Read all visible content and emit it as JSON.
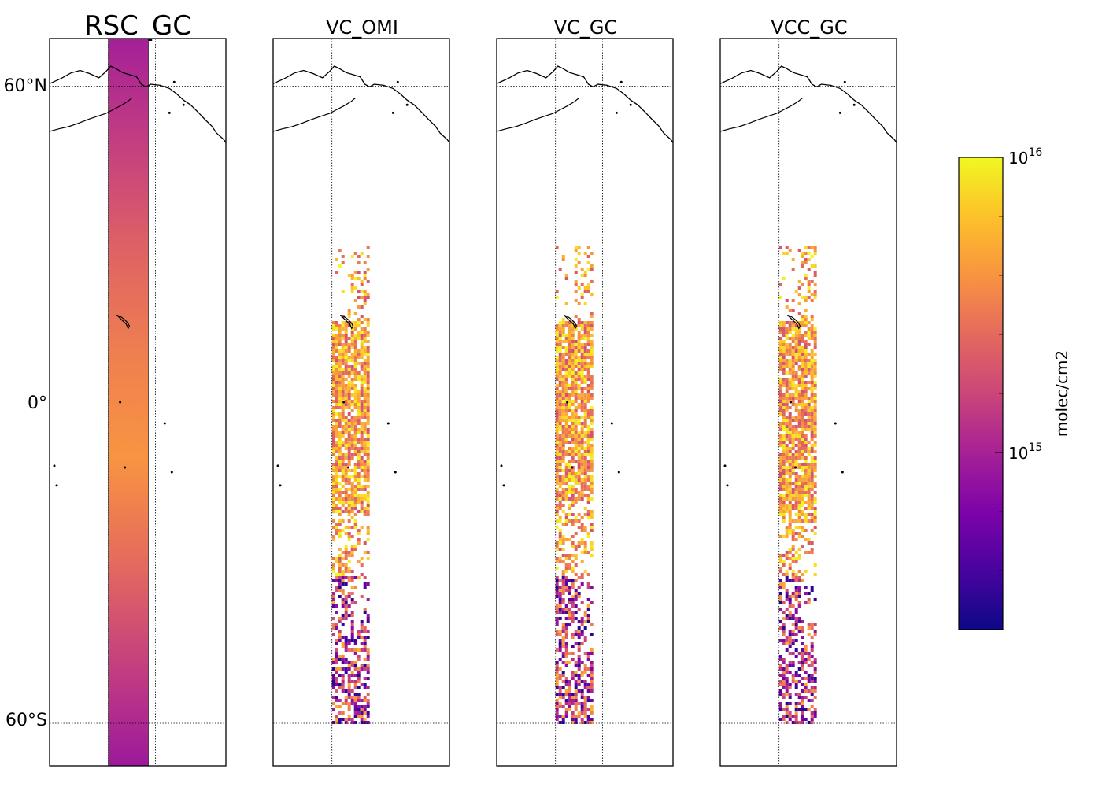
{
  "chart_data": {
    "type": "heatmap",
    "colormap": "plasma",
    "panels": [
      {
        "title": "RSC_GC",
        "kind": "rsc"
      },
      {
        "title": "VC_OMI",
        "kind": "swath",
        "seed": 11,
        "dense_lat": [
          -20,
          16
        ]
      },
      {
        "title": "VC_GC",
        "kind": "swath",
        "seed": 23,
        "dense_lat": [
          -18,
          16
        ]
      },
      {
        "title": "VCC_GC",
        "kind": "swath",
        "seed": 37,
        "dense_lat": [
          -22,
          16
        ]
      }
    ],
    "lat_ticks": [
      {
        "lat": 60,
        "label": "60°N"
      },
      {
        "lat": 0,
        "label": "0°"
      },
      {
        "lat": -60,
        "label": "60°S"
      }
    ],
    "ylim": [
      -68,
      69
    ],
    "swath_lon_range": [
      -180,
      -163
    ],
    "rsc_profile": [
      {
        "lat": 68,
        "log10": 15.0
      },
      {
        "lat": 50,
        "log10": 15.15
      },
      {
        "lat": 30,
        "log10": 15.35
      },
      {
        "lat": 10,
        "log10": 15.5
      },
      {
        "lat": -10,
        "log10": 15.6
      },
      {
        "lat": -30,
        "log10": 15.4
      },
      {
        "lat": -50,
        "log10": 15.15
      },
      {
        "lat": -68,
        "log10": 14.95
      }
    ],
    "colorbar": {
      "label": "molec/cm2",
      "log_range": [
        14.4,
        16.0
      ],
      "ticks": [
        {
          "log10": 16,
          "base": "10",
          "exp": "16"
        },
        {
          "log10": 15,
          "base": "10",
          "exp": "15"
        }
      ]
    }
  }
}
